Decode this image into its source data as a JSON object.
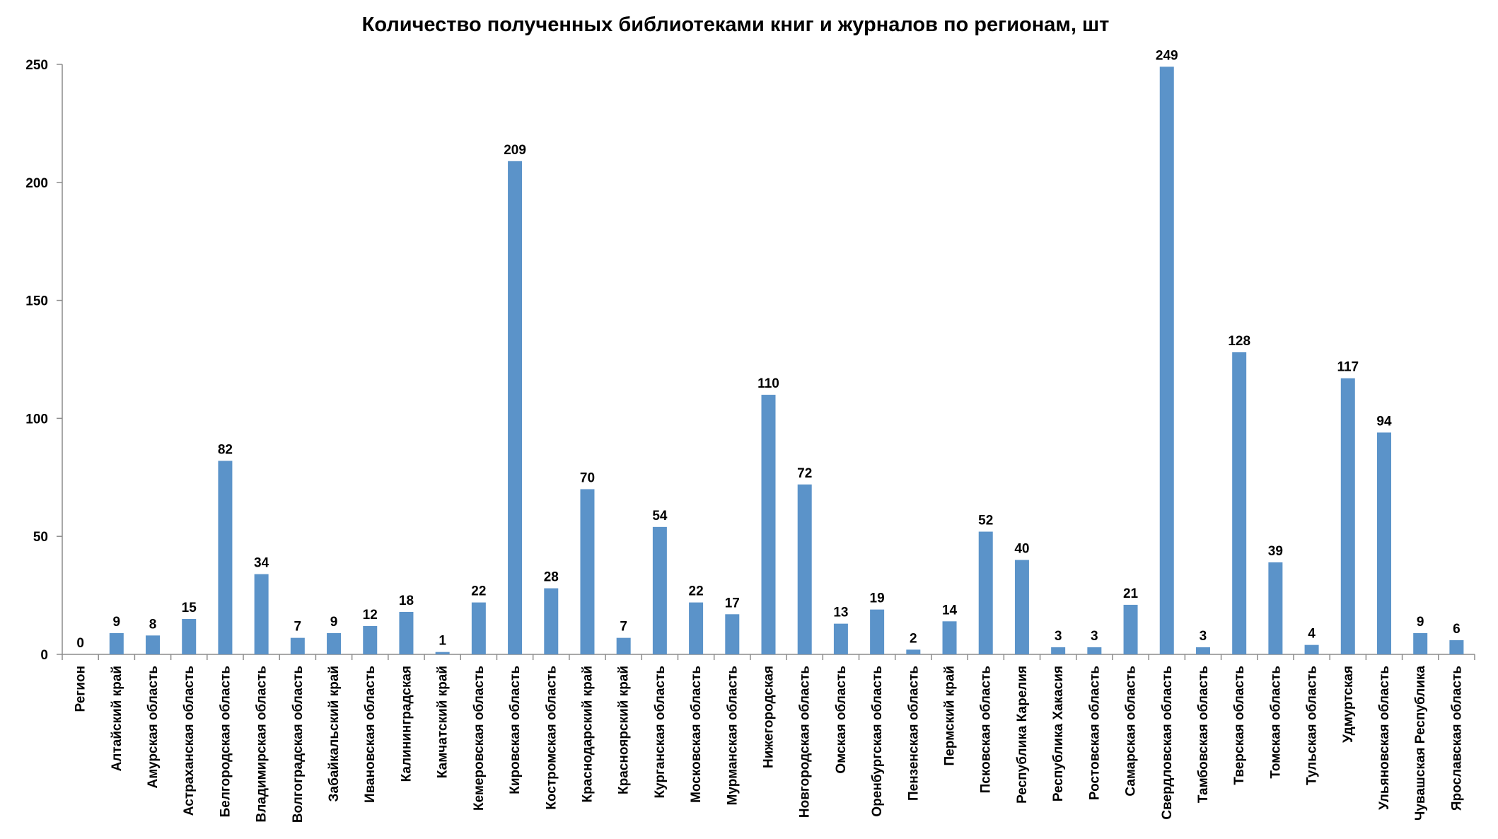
{
  "chart_data": {
    "type": "bar",
    "title": "Количество полученных библиотеками книг и журналов по регионам, шт",
    "xlabel": "",
    "ylabel": "",
    "ylim": [
      0,
      250
    ],
    "yticks": [
      "0",
      "50",
      "100",
      "150",
      "200",
      "250"
    ],
    "grid": false,
    "legend": "none",
    "bar_color": "#5b93c9",
    "categories": [
      "Регион",
      "Алтайский край",
      "Амурская область",
      "Астраханская область",
      "Белгородская область",
      "Владимирская область",
      "Волгоградская область",
      "Забайкальский край",
      "Ивановская область",
      "Калининградская",
      "Камчатский край",
      "Кемеровская область",
      "Кировская область",
      "Костромская область",
      "Краснодарский край",
      "Красноярский край",
      "Курганская область",
      "Московская область",
      "Мурманская область",
      "Нижегородская",
      "Новгородская область",
      "Омская область",
      "Оренбургская область",
      "Пензенская область",
      "Пермский край",
      "Псковская область",
      "Республика Карелия",
      "Республика Хакасия",
      "Ростовская область",
      "Самарская область",
      "Свердловская область",
      "Тамбовская область",
      "Тверская область",
      "Томская область",
      "Тульская область",
      "Удмуртская",
      "Ульяновская область",
      "Чувашская Республика",
      "Ярославская область"
    ],
    "values": [
      0,
      9,
      8,
      15,
      82,
      34,
      7,
      9,
      12,
      18,
      1,
      22,
      209,
      28,
      70,
      7,
      54,
      22,
      17,
      110,
      72,
      13,
      19,
      2,
      14,
      52,
      40,
      3,
      3,
      21,
      249,
      3,
      128,
      39,
      4,
      117,
      94,
      9,
      6
    ],
    "data_labels": [
      "0",
      "9",
      "8",
      "15",
      "82",
      "34",
      "7",
      "9",
      "12",
      "18",
      "1",
      "22",
      "209",
      "28",
      "70",
      "7",
      "54",
      "22",
      "17",
      "110",
      "72",
      "13",
      "19",
      "2",
      "14",
      "52",
      "40",
      "3",
      "3",
      "21",
      "249",
      "3",
      "128",
      "39",
      "4",
      "117",
      "94",
      "9",
      "6"
    ]
  }
}
